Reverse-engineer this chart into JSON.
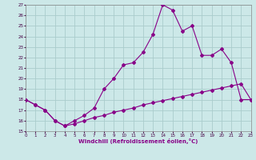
{
  "xlabel": "Windchill (Refroidissement éolien,°C)",
  "bg_color": "#cce8e8",
  "line_color": "#880088",
  "grid_color": "#aacccc",
  "x_line1": [
    0,
    1,
    2,
    3,
    4,
    5,
    6,
    7,
    8,
    9,
    10,
    11,
    12,
    13,
    14,
    15,
    16,
    17,
    18,
    19,
    20,
    21,
    22,
    23
  ],
  "y_line1": [
    18.0,
    17.5,
    17.0,
    16.0,
    15.5,
    16.0,
    16.5,
    17.2,
    19.0,
    20.0,
    21.3,
    21.5,
    22.5,
    24.2,
    27.0,
    26.5,
    24.5,
    25.0,
    22.2,
    22.2,
    22.8,
    21.5,
    18.0,
    18.0
  ],
  "x_line2": [
    0,
    1,
    2,
    3,
    4,
    5,
    6,
    7,
    8,
    9,
    10,
    11,
    12,
    13,
    14,
    15,
    16,
    17,
    18,
    19,
    20,
    21,
    22,
    23
  ],
  "y_line2": [
    18.0,
    17.5,
    17.0,
    16.0,
    15.5,
    15.7,
    16.0,
    16.3,
    16.5,
    16.8,
    17.0,
    17.2,
    17.5,
    17.7,
    17.9,
    18.1,
    18.3,
    18.5,
    18.7,
    18.9,
    19.1,
    19.3,
    19.5,
    18.0
  ],
  "ylim": [
    15,
    27
  ],
  "xlim": [
    0,
    23
  ],
  "yticks": [
    15,
    16,
    17,
    18,
    19,
    20,
    21,
    22,
    23,
    24,
    25,
    26,
    27
  ],
  "xticks": [
    0,
    1,
    2,
    3,
    4,
    5,
    6,
    7,
    8,
    9,
    10,
    11,
    12,
    13,
    14,
    15,
    16,
    17,
    18,
    19,
    20,
    21,
    22,
    23
  ]
}
